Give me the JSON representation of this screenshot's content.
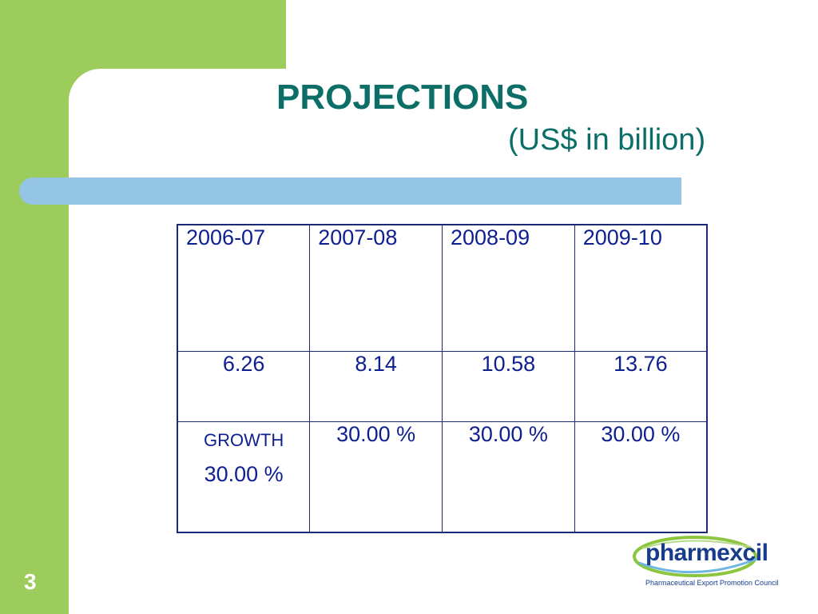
{
  "slide": {
    "title": "PROJECTIONS",
    "subtitle": "(US$ in billion)",
    "page_number": "3"
  },
  "table": {
    "years": [
      "2006-07",
      "2007-08",
      "2008-09",
      "2009-10"
    ],
    "values": [
      "6.26",
      "8.14",
      "10.58",
      "13.76"
    ],
    "growth_label": "GROWTH",
    "growth": [
      "30.00 %",
      "30.00 %",
      "30.00 %",
      "30.00 %"
    ]
  },
  "logo": {
    "name": "pharmexcil",
    "tagline": "Pharmaceutical Export Promotion Council"
  },
  "colors": {
    "accent_green": "#9ccc5c",
    "title_teal": "#0d6e68",
    "bar_blue": "#95c5e5",
    "table_text": "#0e1f8f"
  }
}
